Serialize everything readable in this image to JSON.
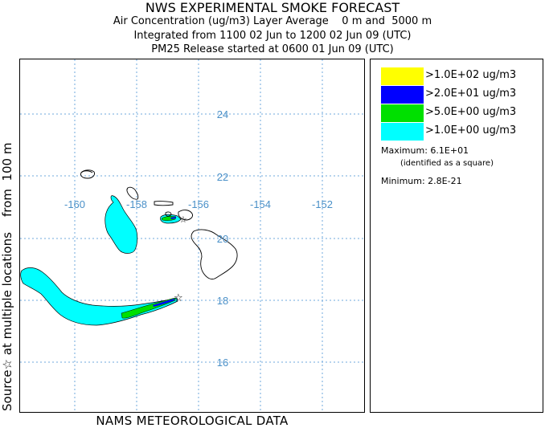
{
  "titles": {
    "main": "NWS EXPERIMENTAL SMOKE FORECAST",
    "line2": "Air Concentration (ug/m3) Layer Average    0 m and  5000 m",
    "line3": "Integrated from 1100 02 Jun to 1200 02 Jun 09 (UTC)",
    "line4": "PM25 Release started at 0600 01 Jun 09 (UTC)"
  },
  "side_label": "Source☆ at multiple locations    from  100 m",
  "bottom_label": "NAMS METEOROLOGICAL DATA",
  "map": {
    "longitude_labels": [
      "-160",
      "-158",
      "-156",
      "-154",
      "-152"
    ],
    "latitude_labels": [
      "24",
      "22",
      "20",
      "18",
      "16"
    ],
    "grid_color": "#6fa8dc",
    "label_color": "#4a90c8"
  },
  "legend": {
    "items": [
      {
        "color": "#ffff00",
        "label": ">1.0E+02 ug/m3"
      },
      {
        "color": "#0000ff",
        "label": ">2.0E+01 ug/m3"
      },
      {
        "color": "#00e000",
        "label": ">5.0E+00 ug/m3"
      },
      {
        "color": "#00ffff",
        "label": ">1.0E+00 ug/m3"
      }
    ],
    "maximum": "Maximum: 6.1E+01",
    "maximum_note": "(identified as a square)",
    "minimum": "Minimum: 2.8E-21"
  }
}
